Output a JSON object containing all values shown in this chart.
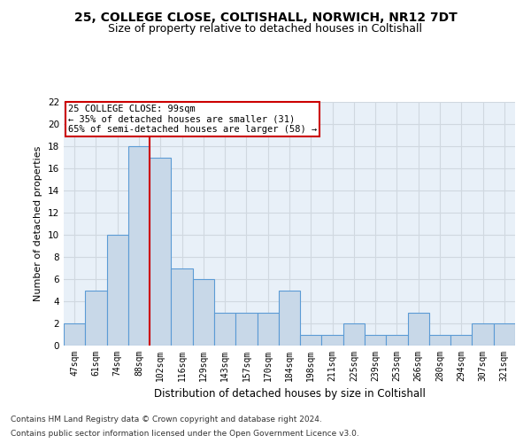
{
  "title1": "25, COLLEGE CLOSE, COLTISHALL, NORWICH, NR12 7DT",
  "title2": "Size of property relative to detached houses in Coltishall",
  "xlabel": "Distribution of detached houses by size in Coltishall",
  "ylabel": "Number of detached properties",
  "footer1": "Contains HM Land Registry data © Crown copyright and database right 2024.",
  "footer2": "Contains public sector information licensed under the Open Government Licence v3.0.",
  "categories": [
    "47sqm",
    "61sqm",
    "74sqm",
    "88sqm",
    "102sqm",
    "116sqm",
    "129sqm",
    "143sqm",
    "157sqm",
    "170sqm",
    "184sqm",
    "198sqm",
    "211sqm",
    "225sqm",
    "239sqm",
    "253sqm",
    "266sqm",
    "280sqm",
    "294sqm",
    "307sqm",
    "321sqm"
  ],
  "values": [
    2,
    5,
    10,
    18,
    17,
    7,
    6,
    3,
    3,
    3,
    5,
    1,
    1,
    2,
    1,
    1,
    3,
    1,
    1,
    2,
    2
  ],
  "bar_color": "#c8d8e8",
  "bar_edge_color": "#5b9bd5",
  "annotation_box_text": "25 COLLEGE CLOSE: 99sqm\n← 35% of detached houses are smaller (31)\n65% of semi-detached houses are larger (58) →",
  "annotation_box_color": "#ffffff",
  "annotation_box_edge_color": "#cc0000",
  "vline_color": "#cc0000",
  "ylim": [
    0,
    22
  ],
  "yticks": [
    0,
    2,
    4,
    6,
    8,
    10,
    12,
    14,
    16,
    18,
    20,
    22
  ],
  "grid_color": "#d0d8e0",
  "bg_color": "#e8f0f8",
  "title1_fontsize": 10,
  "title2_fontsize": 9,
  "xlabel_fontsize": 8.5,
  "ylabel_fontsize": 8,
  "annotation_fontsize": 7.5,
  "footer_fontsize": 6.5
}
